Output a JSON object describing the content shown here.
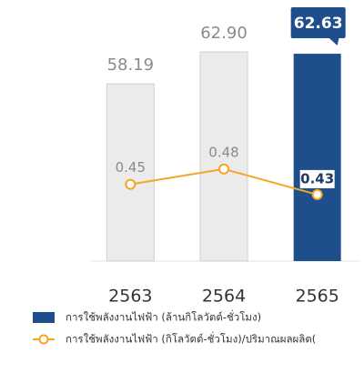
{
  "chart_data": {
    "type": "bar+line",
    "categories": [
      "2563",
      "2564",
      "2565"
    ],
    "series": [
      {
        "name": "การใช้พลังงานไฟฟ้า (ล้านกิโลวัตต์-ชั่วโมง)",
        "type": "bar",
        "color": "#1f4e8c",
        "colors": [
          "#ebebeb",
          "#ebebeb",
          "#1f4e8c"
        ],
        "values": [
          58.19,
          62.9,
          62.63
        ],
        "value_labels": [
          "58.19",
          "62.90",
          "62.63"
        ]
      },
      {
        "name": "การใช้พลังงานไฟฟ้า (กิโลวัตต์-ชั่วโมง)/ปริมาณผลผลิต(",
        "type": "line",
        "axis": "y2",
        "color": "#f5a623",
        "values": [
          0.45,
          0.48,
          0.43
        ]
      }
    ],
    "highlight_index": 2,
    "ylim": [
      32,
      66
    ],
    "y2lim": [
      0.3,
      0.75
    ]
  }
}
